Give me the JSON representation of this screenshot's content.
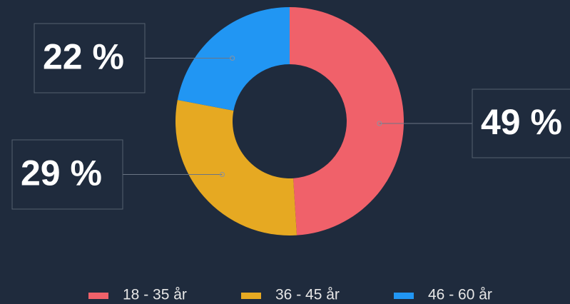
{
  "chart_data": {
    "type": "donut",
    "categories": [
      "18 - 35 år",
      "36 - 45 år",
      "46 - 60 år"
    ],
    "values": [
      49,
      29,
      22
    ],
    "value_labels": [
      "49 %",
      "29 %",
      "22 %"
    ],
    "colors": [
      "#f0616a",
      "#e6a922",
      "#2196f3"
    ],
    "legend": "bottom"
  }
}
